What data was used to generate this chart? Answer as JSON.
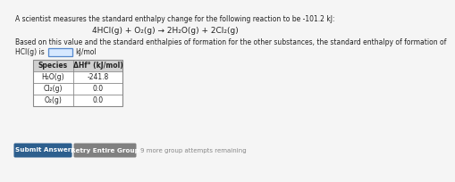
{
  "line1": "A scientist measures the standard enthalpy change for the following reaction to be -101.2 kJ:",
  "reaction": "4HCl(g) + O₂(g) → 2H₂O(g) + 2Cl₂(g)",
  "line3a": "Based on this value and the standard enthalpies of formation for the other substances, the standard enthalpy of formation of",
  "line3b": "HCl(g) is",
  "unit": "kJ/mol",
  "table_header_col1": "Species",
  "table_header_col2": "ΔHf° (kJ/mol)",
  "table_rows": [
    [
      "H₂O(g)",
      "-241.8"
    ],
    [
      "Cl₂(g)",
      "0.0"
    ],
    [
      "O₂(g)",
      "0.0"
    ]
  ],
  "btn1_text": "Submit Answer",
  "btn1_color": "#2d5f8e",
  "btn2_text": "Retry Entire Group",
  "btn2_color": "#808080",
  "footer_text": "9 more group attempts remaining",
  "bg_color": "#f5f5f5",
  "text_color": "#222222",
  "input_box_color": "#d6e8ff",
  "input_border_color": "#5588cc",
  "table_header_bg": "#d0d0d0",
  "table_bg": "#ffffff",
  "table_border_color": "#888888",
  "fs_body": 5.5,
  "fs_reaction": 6.5,
  "fs_table": 5.5,
  "fs_btn": 5.2,
  "fs_footer": 5.0
}
